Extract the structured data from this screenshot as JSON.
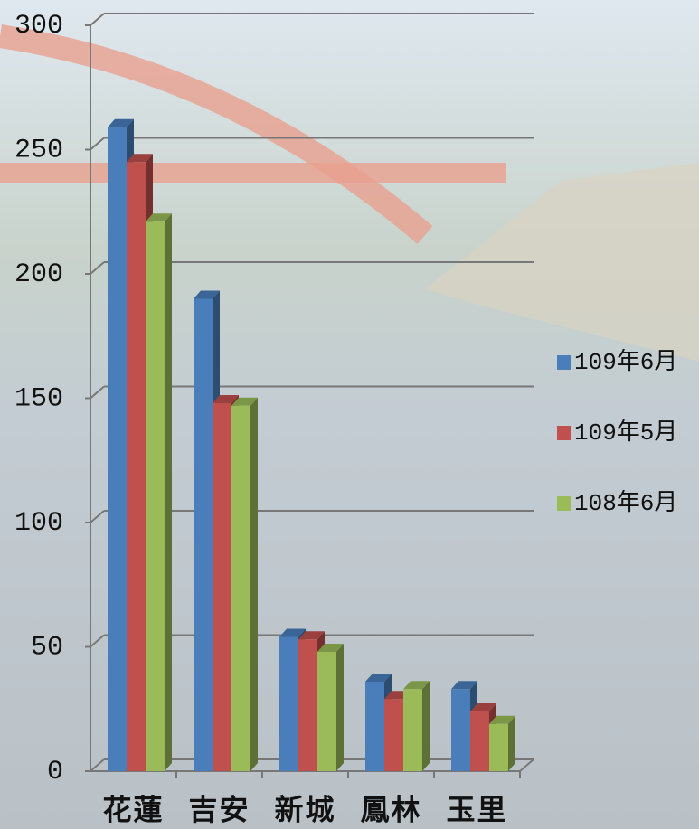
{
  "chart_data": {
    "type": "bar3d",
    "categories": [
      "花蓮",
      "吉安",
      "新城",
      "鳳林",
      "玉里"
    ],
    "series": [
      {
        "name": "109年6月",
        "color": "#4a7ebb",
        "values": [
          259,
          190,
          54,
          36,
          33
        ]
      },
      {
        "name": "109年5月",
        "color": "#c0504d",
        "values": [
          245,
          148,
          53,
          29,
          24
        ]
      },
      {
        "name": "108年6月",
        "color": "#9bbb59",
        "values": [
          221,
          147,
          48,
          33,
          19
        ]
      }
    ],
    "ylim": [
      0,
      300
    ],
    "yticks": [
      0,
      50,
      100,
      150,
      200,
      250,
      300
    ],
    "grid": true,
    "legend": "right"
  }
}
